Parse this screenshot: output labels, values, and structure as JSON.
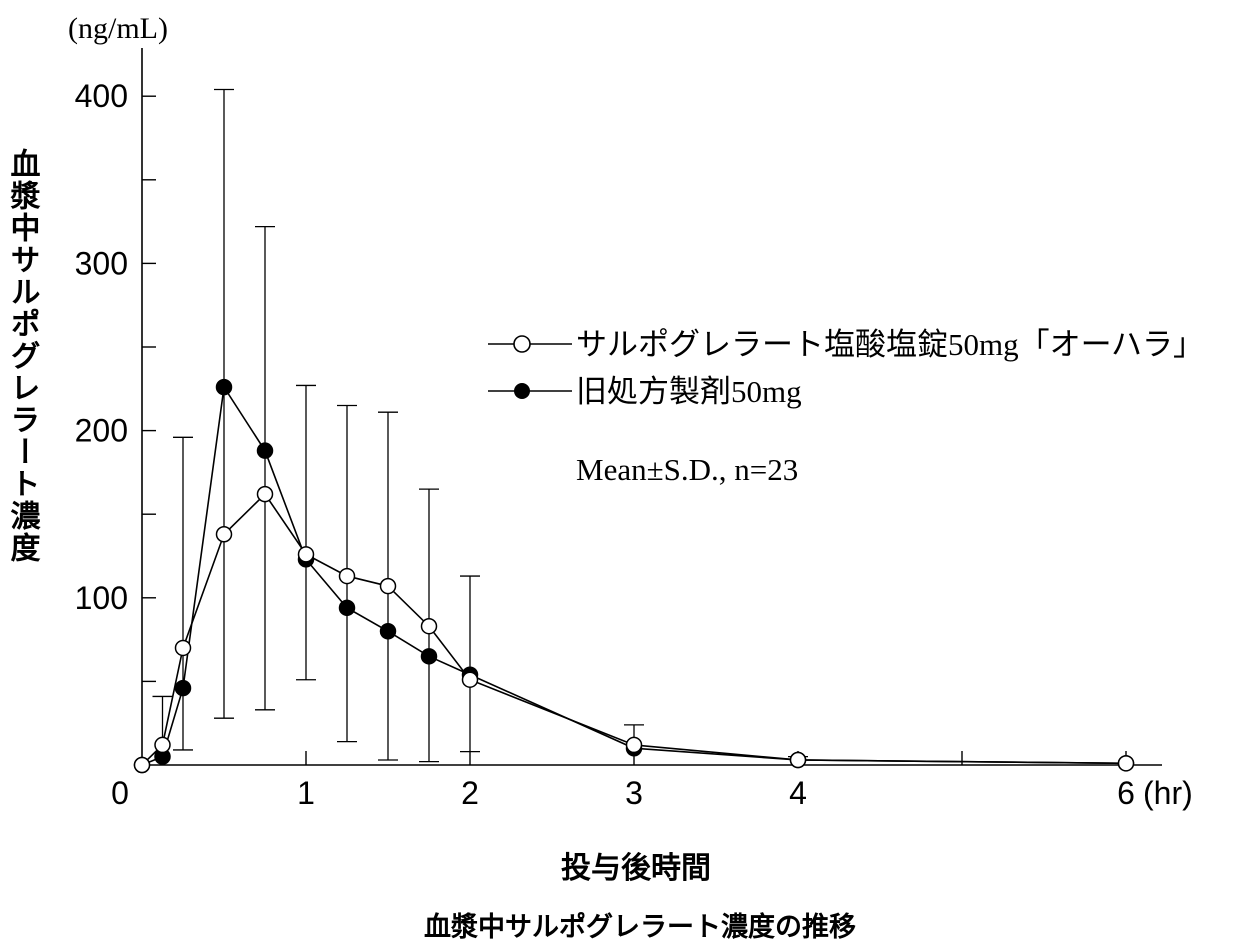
{
  "chart_data": {
    "type": "line",
    "title": "血漿中サルポグレラート濃度の推移",
    "xlabel": "投与後時間",
    "x_unit": "(hr)",
    "ylabel": "血漿中サルポグレラート濃度",
    "y_unit": "(ng/mL)",
    "xlim": [
      0,
      6.2
    ],
    "ylim": [
      0,
      420
    ],
    "x_ticks": [
      0,
      1,
      2,
      3,
      4,
      6
    ],
    "x_tick_labels": [
      "0",
      "1",
      "2",
      "3",
      "4",
      "6"
    ],
    "y_ticks": [
      100,
      200,
      300,
      400
    ],
    "y_tick_labels": [
      "100",
      "200",
      "300",
      "400"
    ],
    "grid": false,
    "legend_position": "right",
    "annotation": "Mean±S.D., n=23",
    "series": [
      {
        "name": "サルポグレラート塩酸塩錠50mg「オーハラ」",
        "marker": "open-circle",
        "x": [
          0,
          0.125,
          0.25,
          0.5,
          0.75,
          1,
          1.25,
          1.5,
          1.75,
          2,
          3,
          4,
          6
        ],
        "y": [
          0,
          12,
          70,
          138,
          162,
          126,
          113,
          107,
          83,
          51,
          12,
          3,
          1
        ]
      },
      {
        "name": "旧処方製剤50mg",
        "marker": "filled-circle",
        "x": [
          0,
          0.125,
          0.25,
          0.5,
          0.75,
          1,
          1.25,
          1.5,
          1.75,
          2,
          3,
          4,
          6
        ],
        "y": [
          0,
          5,
          46,
          226,
          188,
          123,
          94,
          80,
          65,
          54,
          10,
          3,
          1
        ],
        "sd_upper": [
          null,
          41,
          196,
          404,
          322,
          227,
          215,
          211,
          165,
          113,
          24,
          5,
          null
        ],
        "sd_lower": [
          null,
          null,
          9,
          28,
          33,
          51,
          14,
          3,
          2,
          8,
          null,
          null,
          null
        ]
      }
    ]
  }
}
